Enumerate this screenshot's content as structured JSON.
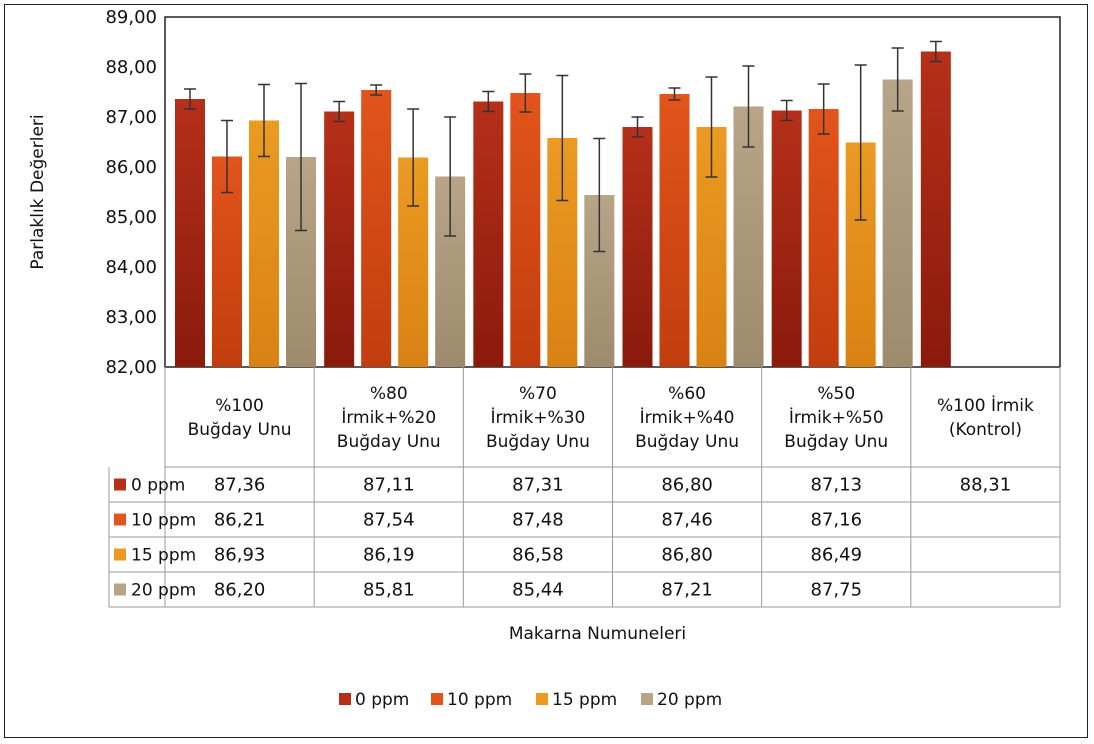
{
  "chart_data": {
    "type": "bar",
    "ylabel": "Parlaklık Değerleri",
    "xlabel": "Makarna Numuneleri",
    "ylim": [
      82,
      89
    ],
    "yticks": [
      "82,00",
      "83,00",
      "84,00",
      "85,00",
      "86,00",
      "87,00",
      "88,00",
      "89,00"
    ],
    "categories": [
      [
        "%100",
        "Buğday Unu"
      ],
      [
        "%80",
        "İrmik+%20",
        "Buğday Unu"
      ],
      [
        "%70",
        "İrmik+%30",
        "Buğday Unu"
      ],
      [
        "%60",
        "İrmik+%40",
        "Buğday Unu"
      ],
      [
        "%50",
        "İrmik+%50",
        "Buğday Unu"
      ],
      [
        "%100 İrmik",
        "(Kontrol)"
      ]
    ],
    "series": [
      {
        "name": "0 ppm",
        "color": "#b5301a",
        "values": [
          87.36,
          87.11,
          87.31,
          86.8,
          87.13,
          88.31
        ],
        "labels": [
          "87,36",
          "87,11",
          "87,31",
          "86,80",
          "87,13",
          "88,31"
        ],
        "errors": [
          0.2,
          0.2,
          0.2,
          0.2,
          0.2,
          0.2
        ]
      },
      {
        "name": "10 ppm",
        "color": "#e2541c",
        "values": [
          86.21,
          87.54,
          87.48,
          87.46,
          87.16,
          null
        ],
        "labels": [
          "86,21",
          "87,54",
          "87,48",
          "87,46",
          "87,16",
          ""
        ],
        "errors": [
          0.72,
          0.1,
          0.38,
          0.12,
          0.5,
          null
        ]
      },
      {
        "name": "15 ppm",
        "color": "#eb9a22",
        "values": [
          86.93,
          86.19,
          86.58,
          86.8,
          86.49,
          null
        ],
        "labels": [
          "86,93",
          "86,19",
          "86,58",
          "86,80",
          "86,49",
          ""
        ],
        "errors": [
          0.72,
          0.97,
          1.25,
          1.0,
          1.55,
          null
        ]
      },
      {
        "name": "20 ppm",
        "color": "#b8a588",
        "values": [
          86.2,
          85.81,
          85.44,
          87.21,
          87.75,
          null
        ],
        "labels": [
          "86,20",
          "85,81",
          "85,44",
          "87,21",
          "87,75",
          ""
        ],
        "errors": [
          1.47,
          1.19,
          1.13,
          0.81,
          0.63,
          null
        ]
      }
    ],
    "legend": "bottom",
    "grid": false,
    "data_table": true
  }
}
